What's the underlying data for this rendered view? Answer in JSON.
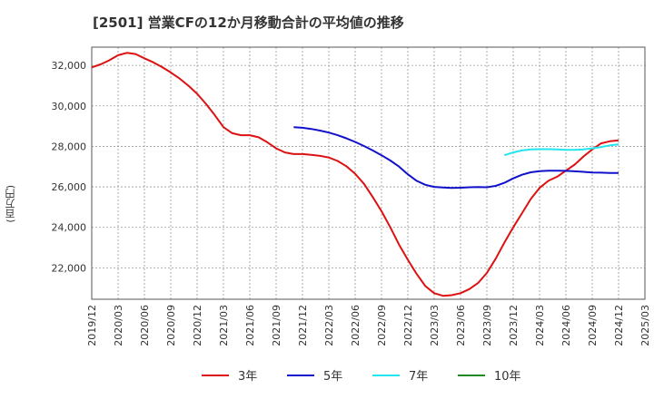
{
  "chart_data": {
    "type": "line",
    "title": "[2501]  営業CFの12か月移動合計の平均値の推移",
    "ylabel": "(百万円)",
    "xlabel": "",
    "x_tick_labels": [
      "2019/12",
      "2020/03",
      "2020/06",
      "2020/09",
      "2020/12",
      "2021/03",
      "2021/06",
      "2021/09",
      "2021/12",
      "2022/03",
      "2022/06",
      "2022/09",
      "2022/12",
      "2023/03",
      "2023/06",
      "2023/09",
      "2023/12",
      "2024/03",
      "2024/06",
      "2024/09",
      "2024/12",
      "2025/03"
    ],
    "y_ticks": [
      22000,
      24000,
      26000,
      28000,
      30000,
      32000
    ],
    "y_tick_labels": [
      "22,000",
      "24,000",
      "26,000",
      "28,000",
      "30,000",
      "32,000"
    ],
    "ylim": [
      20450,
      32900
    ],
    "grid": true,
    "legend_position": "bottom",
    "series": [
      {
        "name": "3年",
        "color": "#dd1111",
        "x": [
          "2019/12",
          "2020/01",
          "2020/02",
          "2020/03",
          "2020/04",
          "2020/05",
          "2020/06",
          "2020/07",
          "2020/08",
          "2020/09",
          "2020/10",
          "2020/11",
          "2020/12",
          "2021/01",
          "2021/02",
          "2021/03",
          "2021/04",
          "2021/05",
          "2021/06",
          "2021/07",
          "2021/08",
          "2021/09",
          "2021/10",
          "2021/11",
          "2021/12",
          "2022/01",
          "2022/02",
          "2022/03",
          "2022/04",
          "2022/05",
          "2022/06",
          "2022/07",
          "2022/08",
          "2022/09",
          "2022/10",
          "2022/11",
          "2022/12",
          "2023/01",
          "2023/02",
          "2023/03",
          "2023/04",
          "2023/05",
          "2023/06",
          "2023/07",
          "2023/08",
          "2023/09",
          "2023/10",
          "2023/11",
          "2023/12",
          "2024/01",
          "2024/02",
          "2024/03",
          "2024/04",
          "2024/05",
          "2024/06",
          "2024/07",
          "2024/08",
          "2024/09",
          "2024/10",
          "2024/11",
          "2024/12"
        ],
        "values": [
          31900,
          32050,
          32250,
          32500,
          32620,
          32560,
          32350,
          32150,
          31920,
          31650,
          31350,
          31000,
          30600,
          30100,
          29550,
          28950,
          28650,
          28550,
          28550,
          28450,
          28200,
          27900,
          27700,
          27620,
          27620,
          27580,
          27530,
          27450,
          27280,
          27020,
          26650,
          26150,
          25500,
          24800,
          24000,
          23150,
          22400,
          21700,
          21100,
          20750,
          20620,
          20650,
          20750,
          20950,
          21250,
          21750,
          22450,
          23250,
          24000,
          24700,
          25400,
          25950,
          26300,
          26500,
          26800,
          27100,
          27500,
          27850,
          28150,
          28250,
          28300
        ],
        "x_end": "2024/12",
        "values_note": ""
      },
      {
        "name": "5年",
        "color": "#1111cc",
        "x": [
          "2021/11",
          "2021/12",
          "2022/01",
          "2022/02",
          "2022/03",
          "2022/04",
          "2022/05",
          "2022/06",
          "2022/07",
          "2022/08",
          "2022/09",
          "2022/10",
          "2022/11",
          "2022/12",
          "2023/01",
          "2023/02",
          "2023/03",
          "2023/04",
          "2023/05",
          "2023/06",
          "2023/07",
          "2023/08",
          "2023/09",
          "2023/10",
          "2023/11",
          "2023/12",
          "2024/01",
          "2024/02",
          "2024/03",
          "2024/04",
          "2024/05",
          "2024/06",
          "2024/07",
          "2024/08",
          "2024/09",
          "2024/10",
          "2024/11",
          "2024/12"
        ],
        "values": [
          28950,
          28920,
          28860,
          28780,
          28680,
          28550,
          28400,
          28220,
          28020,
          27800,
          27560,
          27300,
          27000,
          26620,
          26300,
          26100,
          26000,
          25970,
          25950,
          25960,
          25980,
          25990,
          25980,
          26050,
          26200,
          26420,
          26600,
          26720,
          26780,
          26800,
          26800,
          26790,
          26770,
          26740,
          26710,
          26700,
          26690,
          26690
        ]
      },
      {
        "name": "7年",
        "color": "#22e5ee",
        "x": [
          "2023/11",
          "2023/12",
          "2024/01",
          "2024/02",
          "2024/03",
          "2024/04",
          "2024/05",
          "2024/06",
          "2024/07",
          "2024/08",
          "2024/09",
          "2024/10",
          "2024/11",
          "2024/12"
        ],
        "values": [
          27560,
          27700,
          27800,
          27850,
          27860,
          27860,
          27850,
          27830,
          27830,
          27850,
          27900,
          27970,
          28050,
          28100
        ]
      },
      {
        "name": "10年",
        "color": "#228822",
        "x": [],
        "values": []
      }
    ]
  }
}
